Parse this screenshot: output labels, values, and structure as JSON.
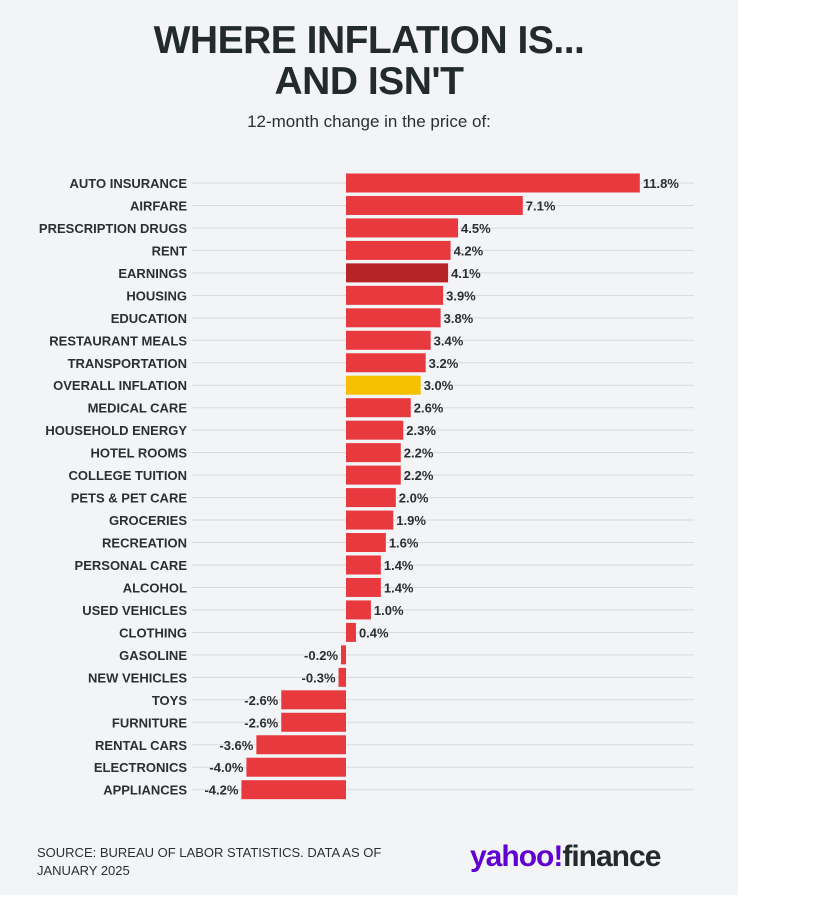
{
  "title_line1": "WHERE INFLATION IS...",
  "title_line2": "AND ISN'T",
  "subtitle": "12-month change in the price of:",
  "source": "SOURCE: BUREAU OF LABOR STATISTICS. DATA AS OF JANUARY 2025",
  "logo": {
    "part1": "yahoo!",
    "part2": "finance"
  },
  "colors": {
    "default": "#e8393f",
    "earnings": "#b72428",
    "overall": "#f6c000",
    "panel": "#f3f4f6",
    "text": "#2b2f33"
  },
  "chart_data": {
    "type": "bar",
    "orientation": "horizontal",
    "title": "WHERE INFLATION IS... AND ISN'T",
    "subtitle": "12-month change in the price of:",
    "categories": [
      "AUTO INSURANCE",
      "AIRFARE",
      "PRESCRIPTION DRUGS",
      "RENT",
      "EARNINGS",
      "HOUSING",
      "EDUCATION",
      "RESTAURANT MEALS",
      "TRANSPORTATION",
      "OVERALL INFLATION",
      "MEDICAL CARE",
      "HOUSEHOLD ENERGY",
      "HOTEL ROOMS",
      "COLLEGE TUITION",
      "PETS & PET CARE",
      "GROCERIES",
      "RECREATION",
      "PERSONAL CARE",
      "ALCOHOL",
      "USED VEHICLES",
      "CLOTHING",
      "GASOLINE",
      "NEW VEHICLES",
      "TOYS",
      "FURNITURE",
      "RENTAL CARS",
      "ELECTRONICS",
      "APPLIANCES"
    ],
    "values": [
      11.8,
      7.1,
      4.5,
      4.2,
      4.1,
      3.9,
      3.8,
      3.4,
      3.2,
      3.0,
      2.6,
      2.3,
      2.2,
      2.2,
      2.0,
      1.9,
      1.6,
      1.4,
      1.4,
      1.0,
      0.4,
      -0.2,
      -0.3,
      -2.6,
      -2.6,
      -3.6,
      -4.0,
      -4.2
    ],
    "labels": [
      "11.8%",
      "7.1%",
      "4.5%",
      "4.2%",
      "4.1%",
      "3.9%",
      "3.8%",
      "3.4%",
      "3.2%",
      "3.0%",
      "2.6%",
      "2.3%",
      "2.2%",
      "2.2%",
      "2.0%",
      "1.9%",
      "1.6%",
      "1.4%",
      "1.4%",
      "1.0%",
      "0.4%",
      "-0.2%",
      "-0.3%",
      "-2.6%",
      "-2.6%",
      "-3.6%",
      "-4.0%",
      "-4.2%"
    ],
    "highlights": {
      "EARNINGS": "#b72428",
      "OVERALL INFLATION": "#f6c000"
    },
    "xlim": [
      -4.2,
      11.8
    ],
    "grid": true,
    "legend": "none"
  }
}
